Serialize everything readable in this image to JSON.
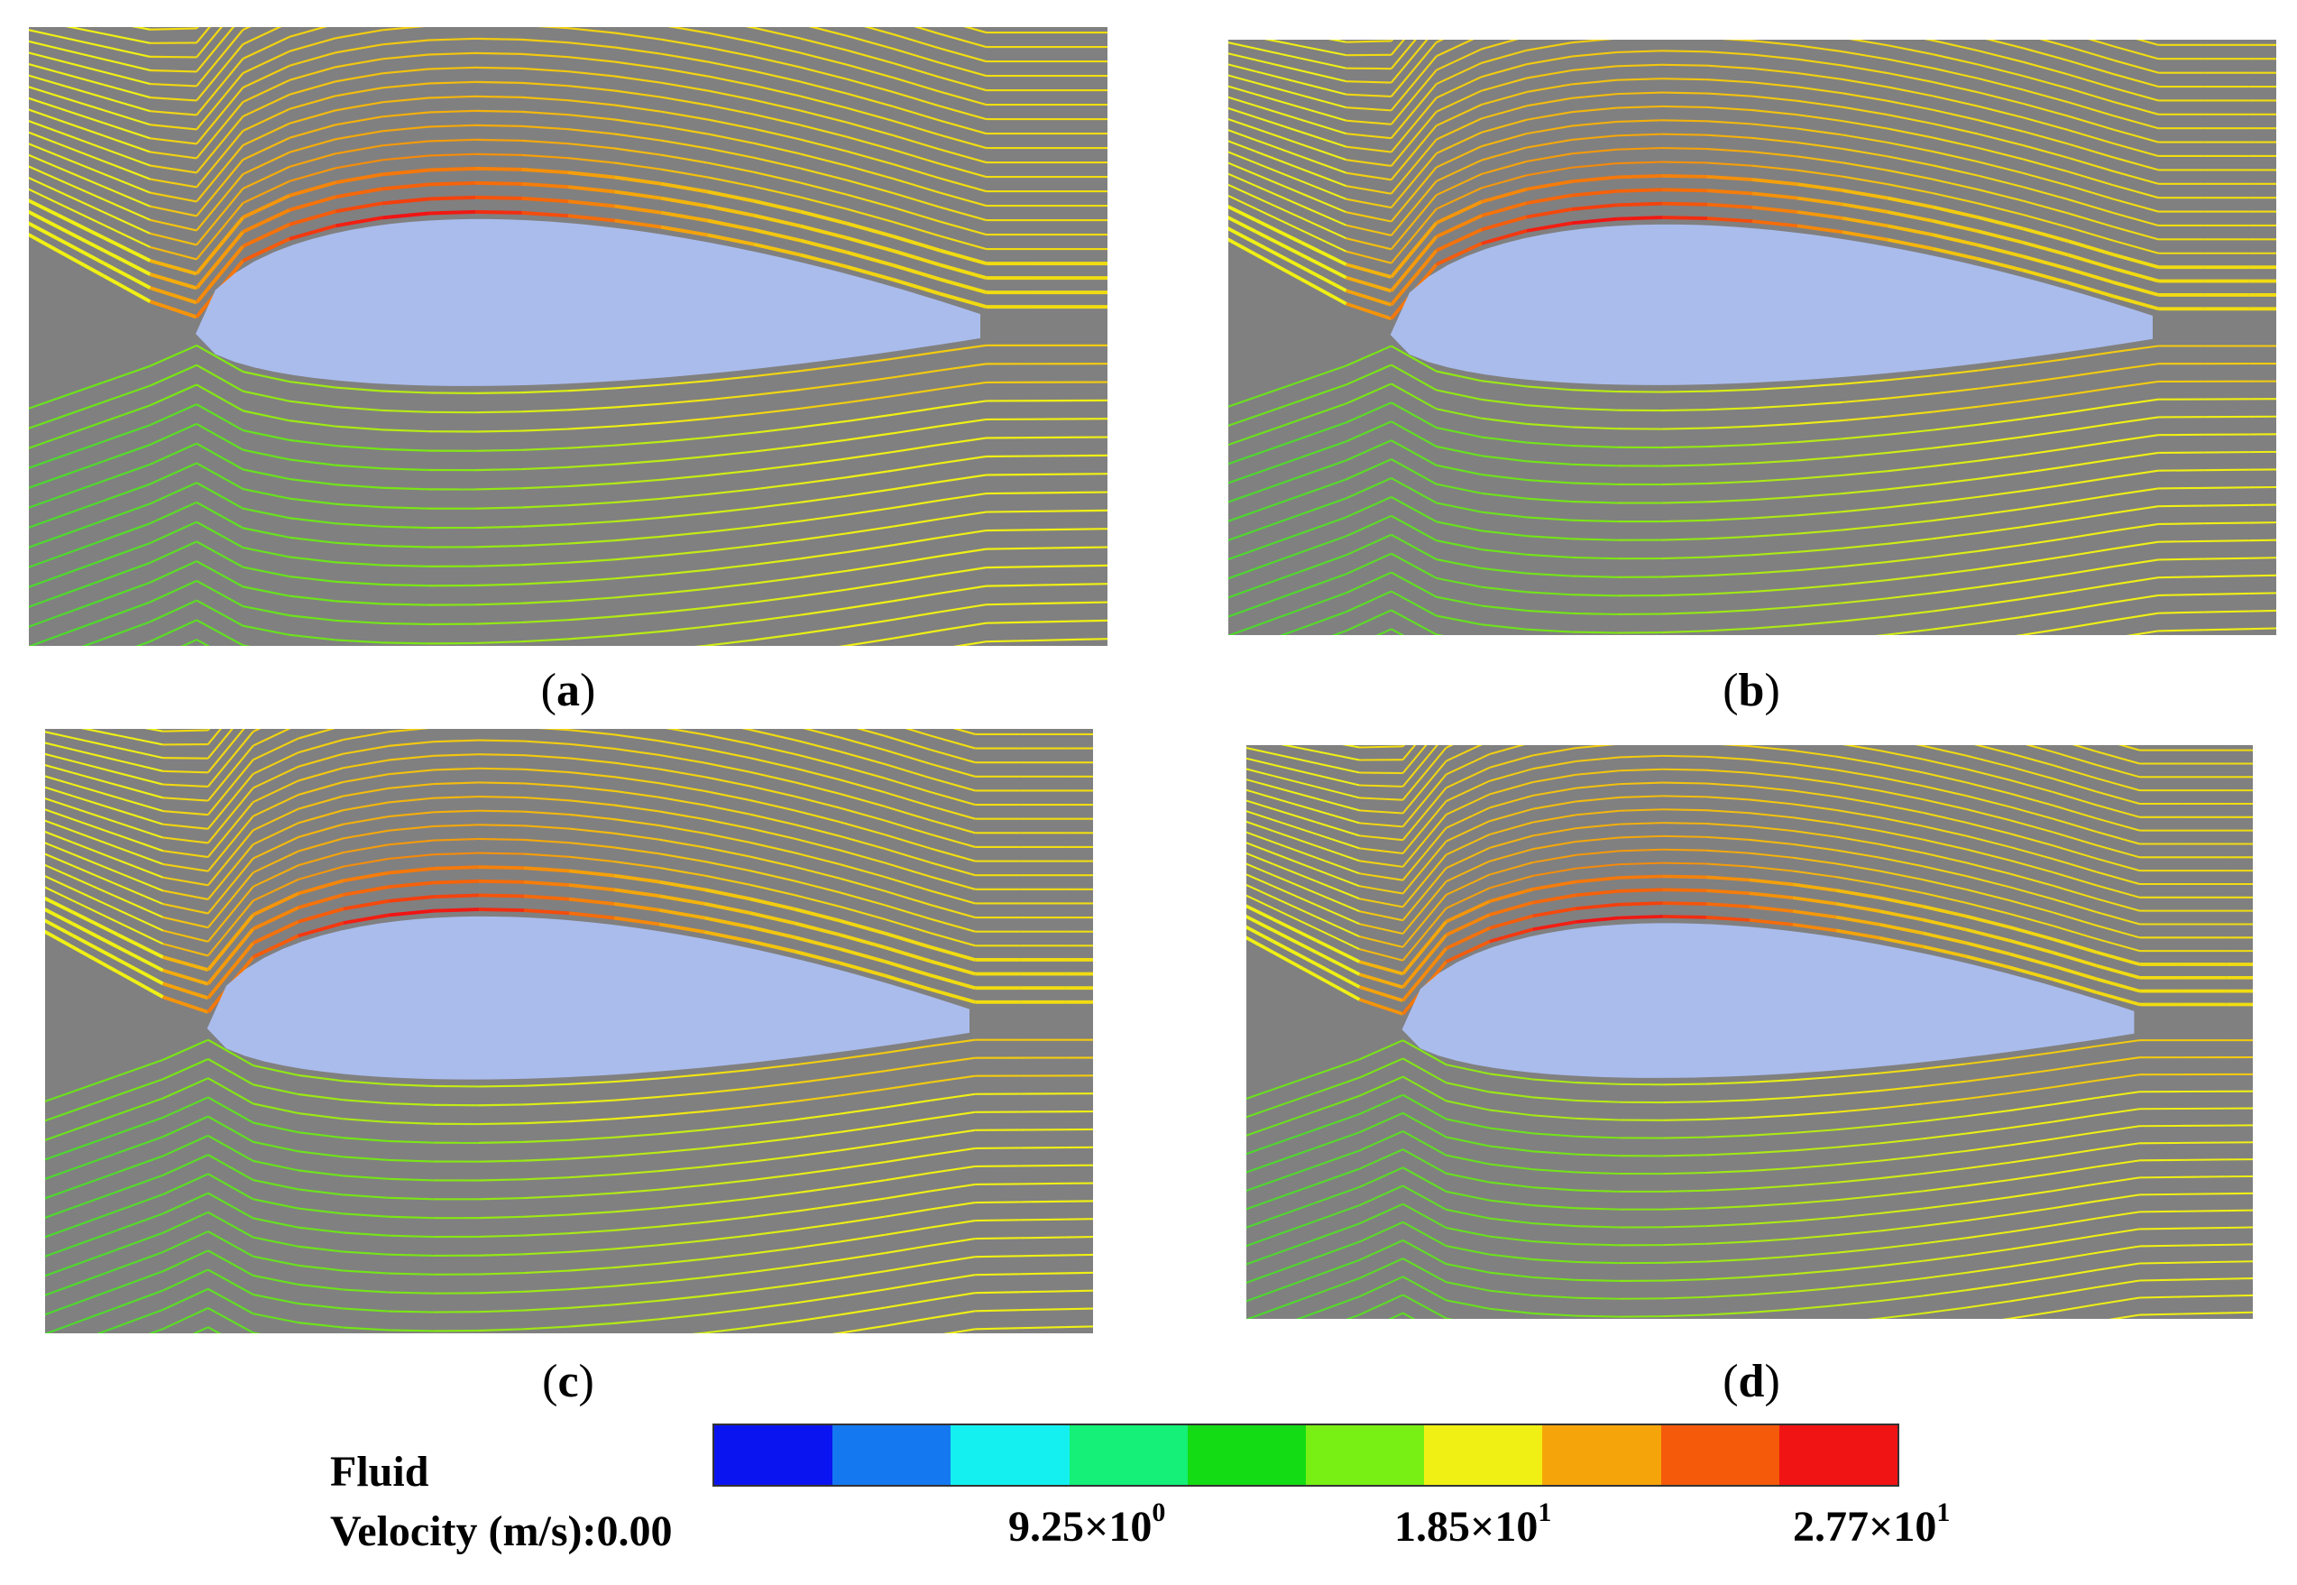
{
  "panels": [
    {
      "id": "a",
      "label": "a"
    },
    {
      "id": "b",
      "label": "b"
    },
    {
      "id": "c",
      "label": "c"
    },
    {
      "id": "d",
      "label": "d"
    }
  ],
  "legend": {
    "title_line1": "Fluid",
    "title_line2": "Velocity (m/s):0.00",
    "ticks": [
      {
        "mantissa": "9.25×10",
        "exp": "0"
      },
      {
        "mantissa": "1.85×10",
        "exp": "1"
      },
      {
        "mantissa": "2.77×10",
        "exp": "1"
      }
    ],
    "colors": [
      "#0a14f0",
      "#1478f0",
      "#14f0f0",
      "#14f078",
      "#14dc14",
      "#78f014",
      "#f0f014",
      "#f5a50a",
      "#f55a0a",
      "#f01414"
    ]
  },
  "colors": {
    "background": "#808080",
    "airfoil": "#aabcec"
  }
}
